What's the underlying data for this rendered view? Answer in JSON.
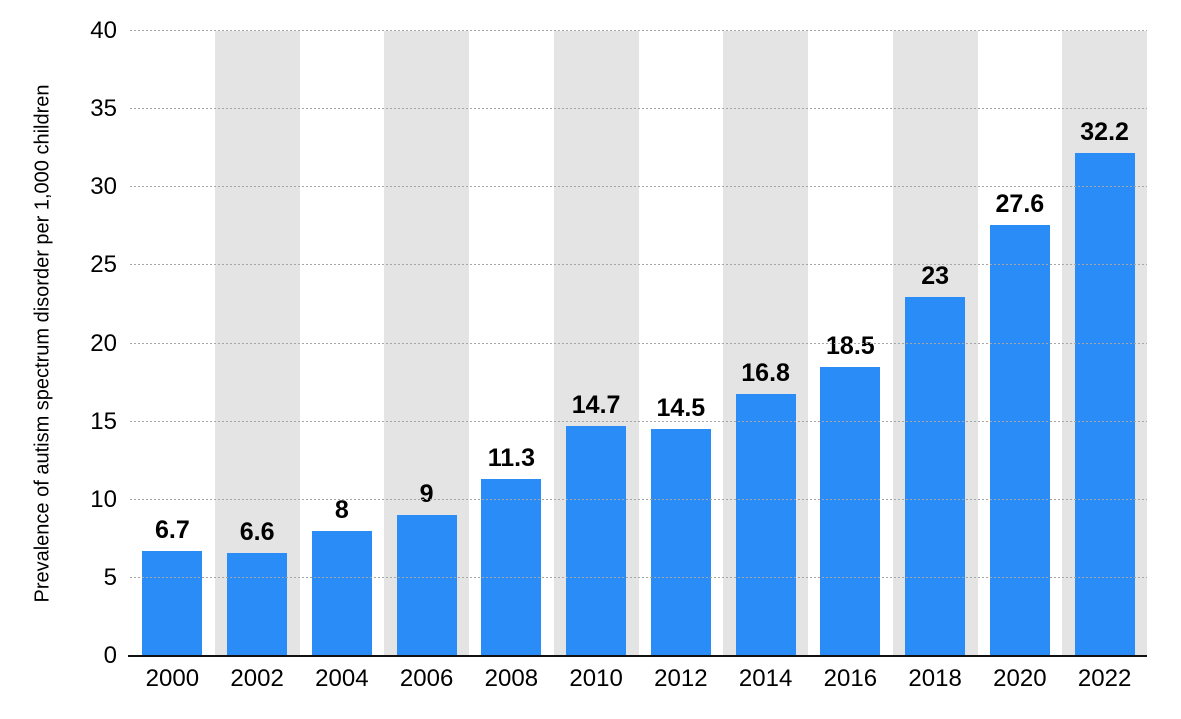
{
  "chart_data": {
    "type": "bar",
    "title": "",
    "xlabel": "",
    "ylabel": "Prevalence of autism spectrum disorder per 1,000 children",
    "categories": [
      "2000",
      "2002",
      "2004",
      "2006",
      "2008",
      "2010",
      "2012",
      "2014",
      "2016",
      "2018",
      "2020",
      "2022"
    ],
    "values": [
      6.7,
      6.6,
      8,
      9,
      11.3,
      14.7,
      14.5,
      16.8,
      18.5,
      23,
      27.6,
      32.2
    ],
    "value_labels": [
      "6.7",
      "6.6",
      "8",
      "9",
      "11.3",
      "14.7",
      "14.5",
      "16.8",
      "18.5",
      "23",
      "27.6",
      "32.2"
    ],
    "ylim": [
      0,
      40
    ],
    "yticks": [
      0,
      5,
      10,
      15,
      20,
      25,
      30,
      35,
      40
    ],
    "grid": "horizontal dotted lines at each y tick",
    "legend": "none",
    "striped_background_categories": [
      "2002",
      "2006",
      "2010",
      "2014",
      "2018",
      "2022"
    ],
    "colors": {
      "bar": "#2a8cf7",
      "column_stripe": "#e4e4e4",
      "gridline": "#a6a6a6",
      "axis_line": "#111111",
      "text": "#000000",
      "background": "#ffffff"
    }
  }
}
